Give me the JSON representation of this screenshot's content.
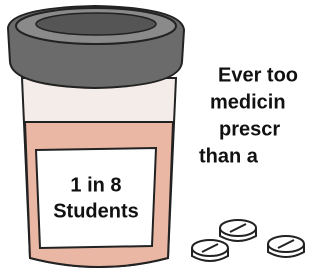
{
  "label": {
    "lines": [
      "1 in 8",
      "Students"
    ]
  },
  "caption": {
    "lines": [
      "Ever too",
      "medicin",
      "prescr",
      "than a"
    ]
  }
}
